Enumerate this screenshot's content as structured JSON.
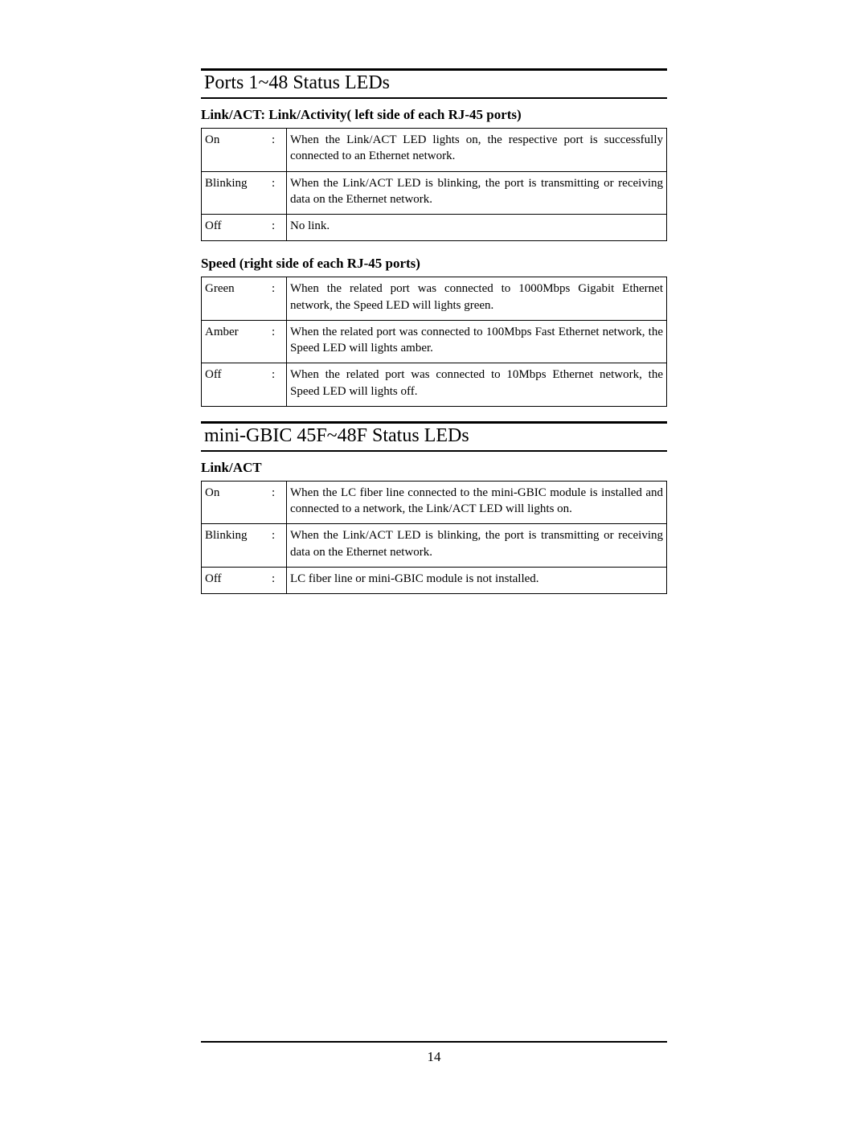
{
  "section1": {
    "title": "Ports 1~48 Status LEDs",
    "subtitle1": "Link/ACT: Link/Activity( left side of each RJ-45 ports)",
    "table1": {
      "rows": [
        {
          "label": "On",
          "sep": ":",
          "desc": "When the Link/ACT LED lights on, the respective port is successfully connected to an Ethernet network."
        },
        {
          "label": "Blinking",
          "sep": ":",
          "desc": "When the Link/ACT LED is blinking, the port is transmitting or receiving data on the Ethernet network."
        },
        {
          "label": "Off",
          "sep": ":",
          "desc": "No link."
        }
      ]
    },
    "subtitle2": "Speed (right side of each RJ-45 ports)",
    "table2": {
      "rows": [
        {
          "label": "Green",
          "sep": ":",
          "desc": "When the related port was connected to 1000Mbps Gigabit Ethernet network, the Speed LED will lights green."
        },
        {
          "label": "Amber",
          "sep": ":",
          "desc": "When the related port was connected to 100Mbps Fast Ethernet network, the Speed LED will lights amber."
        },
        {
          "label": "Off",
          "sep": ":",
          "desc": "When the related port was connected to 10Mbps Ethernet network, the Speed LED will lights off."
        }
      ]
    }
  },
  "section2": {
    "title": "mini-GBIC 45F~48F Status LEDs",
    "subtitle1": "Link/ACT",
    "table1": {
      "rows": [
        {
          "label": "On",
          "sep": ":",
          "desc": "When the LC fiber line connected to the mini-GBIC module is installed and connected to a network, the Link/ACT LED will lights on."
        },
        {
          "label": "Blinking",
          "sep": ":",
          "desc": "When the Link/ACT LED is blinking, the port is transmitting or receiving data on the Ethernet network."
        },
        {
          "label": "Off",
          "sep": ":",
          "desc": "LC fiber line or mini-GBIC module is not installed."
        }
      ]
    }
  },
  "page_number": "14"
}
